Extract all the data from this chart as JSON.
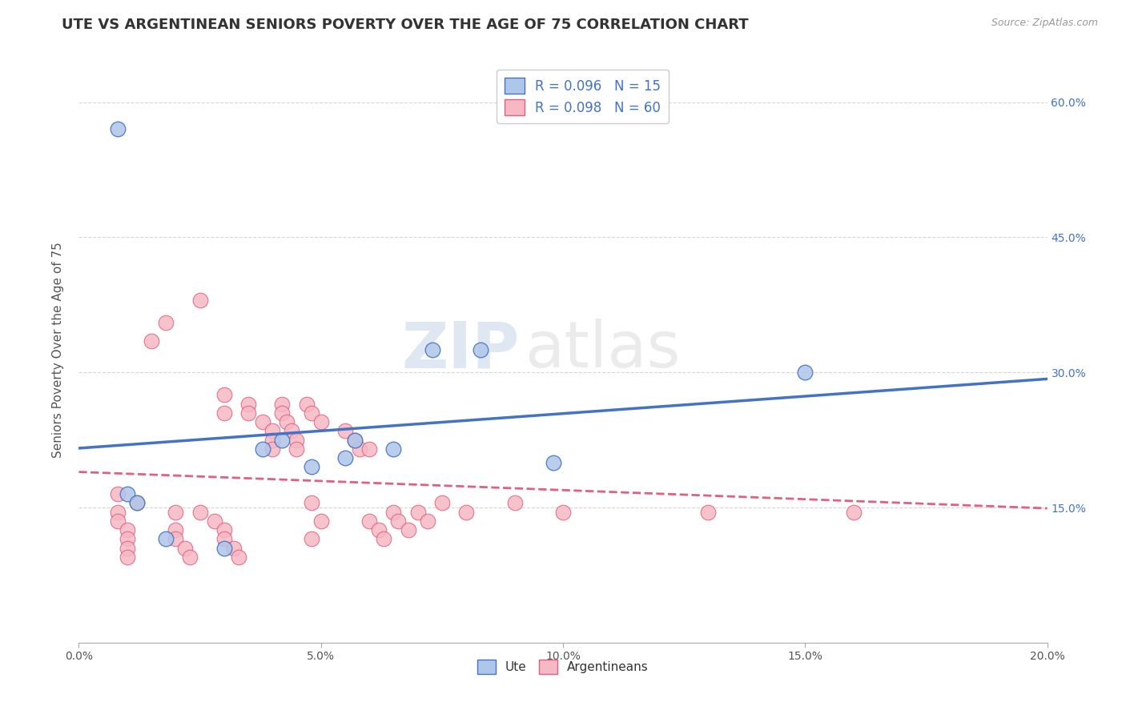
{
  "title": "UTE VS ARGENTINEAN SENIORS POVERTY OVER THE AGE OF 75 CORRELATION CHART",
  "source_text": "Source: ZipAtlas.com",
  "ylabel": "Seniors Poverty Over the Age of 75",
  "xlim": [
    0.0,
    0.2
  ],
  "ylim": [
    0.0,
    0.65
  ],
  "xtick_labels": [
    "0.0%",
    "",
    "5.0%",
    "",
    "10.0%",
    "",
    "15.0%",
    "",
    "20.0%"
  ],
  "xtick_vals": [
    0.0,
    0.025,
    0.05,
    0.075,
    0.1,
    0.125,
    0.15,
    0.175,
    0.2
  ],
  "ytick_labels": [
    "15.0%",
    "30.0%",
    "45.0%",
    "60.0%"
  ],
  "ytick_vals": [
    0.15,
    0.3,
    0.45,
    0.6
  ],
  "watermark_zip": "ZIP",
  "watermark_atlas": "atlas",
  "legend_r_ute": "R = 0.096",
  "legend_n_ute": "N = 15",
  "legend_r_arg": "R = 0.098",
  "legend_n_arg": "N = 60",
  "ute_color": "#aec6e8",
  "arg_color": "#f5b8c4",
  "ute_edge_color": "#4472c4",
  "arg_edge_color": "#e06080",
  "ute_line_color": "#4472c4",
  "arg_line_color": "#e06080",
  "ute_scatter": [
    [
      0.008,
      0.57
    ],
    [
      0.01,
      0.165
    ],
    [
      0.012,
      0.155
    ],
    [
      0.018,
      0.115
    ],
    [
      0.03,
      0.105
    ],
    [
      0.038,
      0.215
    ],
    [
      0.042,
      0.225
    ],
    [
      0.048,
      0.195
    ],
    [
      0.055,
      0.205
    ],
    [
      0.057,
      0.225
    ],
    [
      0.065,
      0.215
    ],
    [
      0.073,
      0.325
    ],
    [
      0.083,
      0.325
    ],
    [
      0.098,
      0.2
    ],
    [
      0.15,
      0.3
    ]
  ],
  "arg_scatter": [
    [
      0.008,
      0.165
    ],
    [
      0.008,
      0.145
    ],
    [
      0.008,
      0.135
    ],
    [
      0.01,
      0.125
    ],
    [
      0.01,
      0.115
    ],
    [
      0.01,
      0.105
    ],
    [
      0.01,
      0.095
    ],
    [
      0.012,
      0.155
    ],
    [
      0.015,
      0.335
    ],
    [
      0.018,
      0.355
    ],
    [
      0.02,
      0.145
    ],
    [
      0.02,
      0.125
    ],
    [
      0.02,
      0.115
    ],
    [
      0.022,
      0.105
    ],
    [
      0.023,
      0.095
    ],
    [
      0.025,
      0.38
    ],
    [
      0.025,
      0.145
    ],
    [
      0.028,
      0.135
    ],
    [
      0.03,
      0.275
    ],
    [
      0.03,
      0.255
    ],
    [
      0.03,
      0.125
    ],
    [
      0.03,
      0.115
    ],
    [
      0.032,
      0.105
    ],
    [
      0.033,
      0.095
    ],
    [
      0.035,
      0.265
    ],
    [
      0.035,
      0.255
    ],
    [
      0.038,
      0.245
    ],
    [
      0.04,
      0.235
    ],
    [
      0.04,
      0.225
    ],
    [
      0.04,
      0.215
    ],
    [
      0.042,
      0.265
    ],
    [
      0.042,
      0.255
    ],
    [
      0.043,
      0.245
    ],
    [
      0.044,
      0.235
    ],
    [
      0.045,
      0.225
    ],
    [
      0.045,
      0.215
    ],
    [
      0.047,
      0.265
    ],
    [
      0.048,
      0.255
    ],
    [
      0.048,
      0.155
    ],
    [
      0.048,
      0.115
    ],
    [
      0.05,
      0.245
    ],
    [
      0.05,
      0.135
    ],
    [
      0.055,
      0.235
    ],
    [
      0.057,
      0.225
    ],
    [
      0.058,
      0.215
    ],
    [
      0.06,
      0.215
    ],
    [
      0.06,
      0.135
    ],
    [
      0.062,
      0.125
    ],
    [
      0.063,
      0.115
    ],
    [
      0.065,
      0.145
    ],
    [
      0.066,
      0.135
    ],
    [
      0.068,
      0.125
    ],
    [
      0.07,
      0.145
    ],
    [
      0.072,
      0.135
    ],
    [
      0.075,
      0.155
    ],
    [
      0.08,
      0.145
    ],
    [
      0.09,
      0.155
    ],
    [
      0.1,
      0.145
    ],
    [
      0.13,
      0.145
    ],
    [
      0.16,
      0.145
    ]
  ],
  "background_color": "#ffffff",
  "plot_bg_color": "#ffffff",
  "grid_color": "#cccccc",
  "title_fontsize": 13,
  "axis_label_fontsize": 11,
  "tick_fontsize": 10,
  "right_tick_color": "#4472c4"
}
